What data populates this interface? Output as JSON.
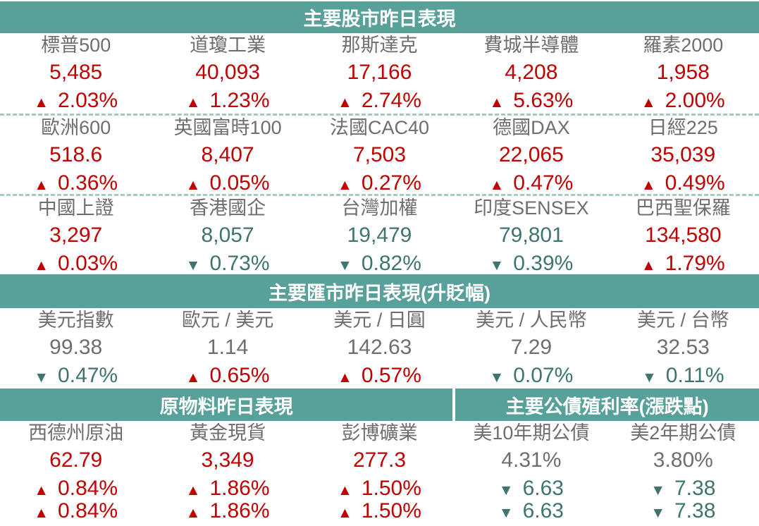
{
  "colors": {
    "header_bg": "#58A19A",
    "header_text": "#FFFFFF",
    "up": "#C00000",
    "down": "#3F746F",
    "text": "#6E6E6E",
    "divider": "#A4CAC6"
  },
  "chart_data": [
    {
      "type": "table",
      "title": "主要股市昨日表現",
      "rows": [
        [
          {
            "name": "標普500",
            "value": "5,485",
            "change": "2.03%",
            "direction": "up"
          },
          {
            "name": "道瓊工業",
            "value": "40,093",
            "change": "1.23%",
            "direction": "up"
          },
          {
            "name": "那斯達克",
            "value": "17,166",
            "change": "2.74%",
            "direction": "up"
          },
          {
            "name": "費城半導體",
            "value": "4,208",
            "change": "5.63%",
            "direction": "up"
          },
          {
            "name": "羅素2000",
            "value": "1,958",
            "change": "2.00%",
            "direction": "up"
          }
        ],
        [
          {
            "name": "歐洲600",
            "value": "518.6",
            "change": "0.36%",
            "direction": "up"
          },
          {
            "name": "英國富時100",
            "value": "8,407",
            "change": "0.05%",
            "direction": "up"
          },
          {
            "name": "法國CAC40",
            "value": "7,503",
            "change": "0.27%",
            "direction": "up"
          },
          {
            "name": "德國DAX",
            "value": "22,065",
            "change": "0.47%",
            "direction": "up"
          },
          {
            "name": "日經225",
            "value": "35,039",
            "change": "0.49%",
            "direction": "up"
          }
        ],
        [
          {
            "name": "中國上證",
            "value": "3,297",
            "change": "0.03%",
            "direction": "up"
          },
          {
            "name": "香港國企",
            "value": "8,057",
            "change": "0.73%",
            "direction": "down"
          },
          {
            "name": "台灣加權",
            "value": "19,479",
            "change": "0.82%",
            "direction": "down"
          },
          {
            "name": "印度SENSEX",
            "value": "79,801",
            "change": "0.39%",
            "direction": "down"
          },
          {
            "name": "巴西聖保羅",
            "value": "134,580",
            "change": "1.79%",
            "direction": "up"
          }
        ]
      ]
    },
    {
      "type": "table",
      "title": "主要匯市昨日表現(升貶幅)",
      "rows": [
        [
          {
            "name": "美元指數",
            "value": "99.38",
            "change": "0.47%",
            "direction": "down"
          },
          {
            "name": "歐元 / 美元",
            "value": "1.14",
            "change": "0.65%",
            "direction": "up"
          },
          {
            "name": "美元 / 日圓",
            "value": "142.63",
            "change": "0.57%",
            "direction": "up"
          },
          {
            "name": "美元 / 人民幣",
            "value": "7.29",
            "change": "0.07%",
            "direction": "down"
          },
          {
            "name": "美元 / 台幣",
            "value": "32.53",
            "change": "0.11%",
            "direction": "down"
          }
        ]
      ]
    },
    {
      "type": "table",
      "title": "原物料昨日表現",
      "rows": [
        [
          {
            "name": "西德州原油",
            "value": "62.79",
            "change": "0.84%",
            "direction": "up"
          },
          {
            "name": "黃金現貨",
            "value": "3,349",
            "change": "1.86%",
            "direction": "up"
          },
          {
            "name": "彭博礦業",
            "value": "277.3",
            "change": "1.50%",
            "direction": "up"
          }
        ]
      ]
    },
    {
      "type": "table",
      "title": "主要公債殖利率(漲跌點)",
      "rows": [
        [
          {
            "name": "美10年期公債",
            "value": "4.31%",
            "change": "6.63",
            "direction": "down"
          },
          {
            "name": "美2年期公債",
            "value": "3.80%",
            "change": "7.38",
            "direction": "down"
          }
        ]
      ]
    }
  ]
}
